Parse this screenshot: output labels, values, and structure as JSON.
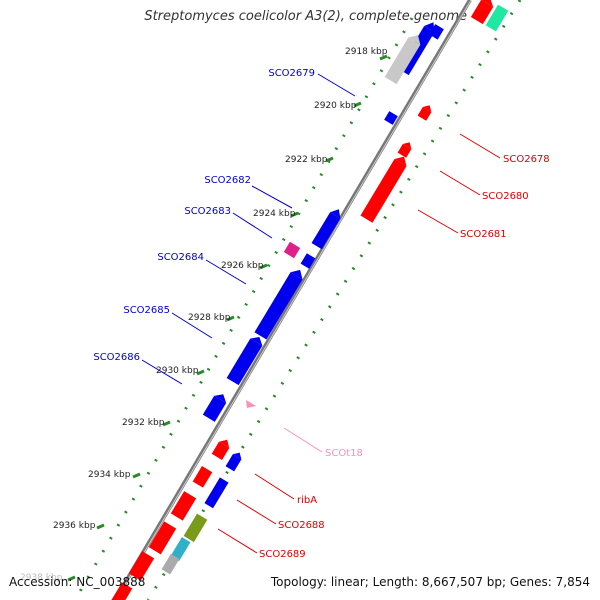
{
  "title": "Streptomyces coelicolor A3(2), complete genome",
  "accession": "Accession: NC_003888",
  "summary": "Topology: linear; Length: 8,667,507 bp; Genes: 7,854",
  "colors": {
    "forward": "#ff0000",
    "reverse": "#0000ee",
    "rna": "#ff8fb8",
    "pseudo": "#bbbbbb",
    "backbone": "#777777",
    "tick": "#2a8a2a"
  },
  "kbp_ticks": [
    "2918 kbp",
    "2920 kbp",
    "2922 kbp",
    "2924 kbp",
    "2926 kbp",
    "2928 kbp",
    "2930 kbp",
    "2932 kbp",
    "2934 kbp",
    "2936 kbp",
    "2938 kbp"
  ],
  "left_labels": [
    "SCO2679",
    "SCO2682",
    "SCO2683",
    "SCO2684",
    "SCO2685",
    "SCO2686"
  ],
  "right_labels": [
    "SCO2678",
    "SCO2680",
    "SCO2681",
    "SCOt18",
    "ribA",
    "SCO2688",
    "SCO2689"
  ]
}
